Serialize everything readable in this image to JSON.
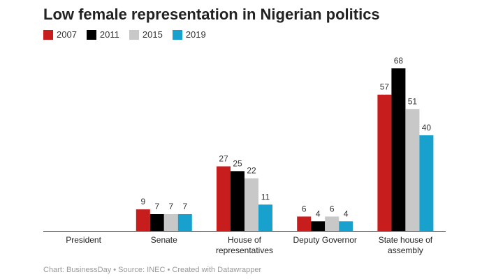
{
  "chart_data": {
    "type": "bar",
    "title": "Low female representation in Nigerian politics",
    "categories": [
      "President",
      "Senate",
      "House of representatives",
      "Deputy Governor",
      "State house of assembly"
    ],
    "series": [
      {
        "name": "2007",
        "color": "#c71e1d",
        "values": [
          0,
          9,
          27,
          6,
          57
        ]
      },
      {
        "name": "2011",
        "color": "#000000",
        "values": [
          0,
          7,
          25,
          4,
          68
        ]
      },
      {
        "name": "2015",
        "color": "#c8c8c8",
        "values": [
          0,
          7,
          22,
          6,
          51
        ]
      },
      {
        "name": "2019",
        "color": "#18a1cd",
        "values": [
          0,
          7,
          11,
          4,
          40
        ]
      }
    ],
    "ylim": [
      0,
      68
    ],
    "grid": false,
    "legend": "top-left",
    "xlabel": "",
    "ylabel": ""
  },
  "footer": "Chart: BusinessDay • Source: INEC • Created with Datawrapper"
}
